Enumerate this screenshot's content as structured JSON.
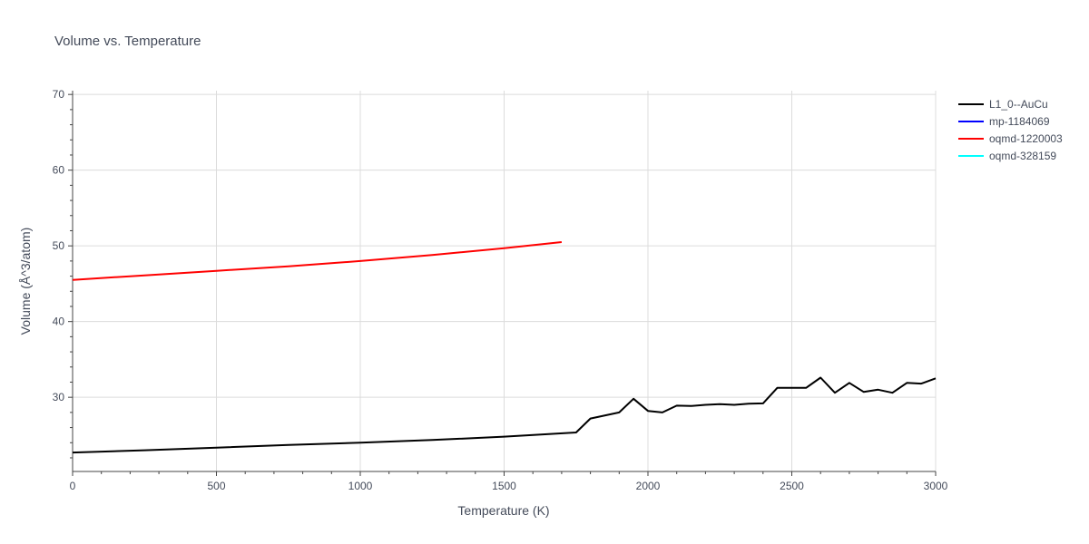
{
  "chart_data": {
    "type": "line",
    "title": "Volume vs. Temperature",
    "xlabel": "Temperature (K)",
    "ylabel": "Volume (Å^3/atom)",
    "xlim": [
      0,
      3000
    ],
    "ylim": [
      20.2,
      70.5
    ],
    "x_ticks": [
      0,
      500,
      1000,
      1500,
      2000,
      2500,
      3000
    ],
    "x_tick_labels": [
      "0",
      "500",
      "1000",
      "1500",
      "2000",
      "2500",
      "3000"
    ],
    "y_ticks": [
      30,
      40,
      50,
      60,
      70
    ],
    "y_tick_labels": [
      "30",
      "40",
      "50",
      "60",
      "70"
    ],
    "grid": true,
    "legend_position": "top-right",
    "series": [
      {
        "name": "L1_0--AuCu",
        "color": "#000000",
        "x": [
          0,
          250,
          500,
          750,
          1000,
          1250,
          1500,
          1750,
          1800,
          1900,
          1950,
          2000,
          2050,
          2100,
          2150,
          2200,
          2250,
          2300,
          2350,
          2400,
          2450,
          2500,
          2550,
          2600,
          2650,
          2700,
          2750,
          2800,
          2850,
          2900,
          2950,
          3000
        ],
        "y": [
          22.7,
          23.0,
          23.35,
          23.7,
          24.0,
          24.35,
          24.8,
          25.35,
          27.2,
          28.0,
          29.8,
          28.2,
          28.0,
          28.9,
          28.85,
          29.0,
          29.1,
          29.0,
          29.15,
          29.2,
          31.25,
          31.25,
          31.25,
          32.6,
          30.6,
          31.9,
          30.7,
          31.0,
          30.6,
          31.9,
          31.8,
          32.5
        ]
      },
      {
        "name": "mp-1184069",
        "color": "#0000ff",
        "x": [],
        "y": []
      },
      {
        "name": "oqmd-1220003",
        "color": "#ff0000",
        "x": [
          0,
          250,
          500,
          750,
          1000,
          1250,
          1500,
          1700
        ],
        "y": [
          45.5,
          46.1,
          46.7,
          47.3,
          48.0,
          48.8,
          49.7,
          50.5
        ]
      },
      {
        "name": "oqmd-328159",
        "color": "#00ffff",
        "x": [],
        "y": []
      }
    ]
  }
}
